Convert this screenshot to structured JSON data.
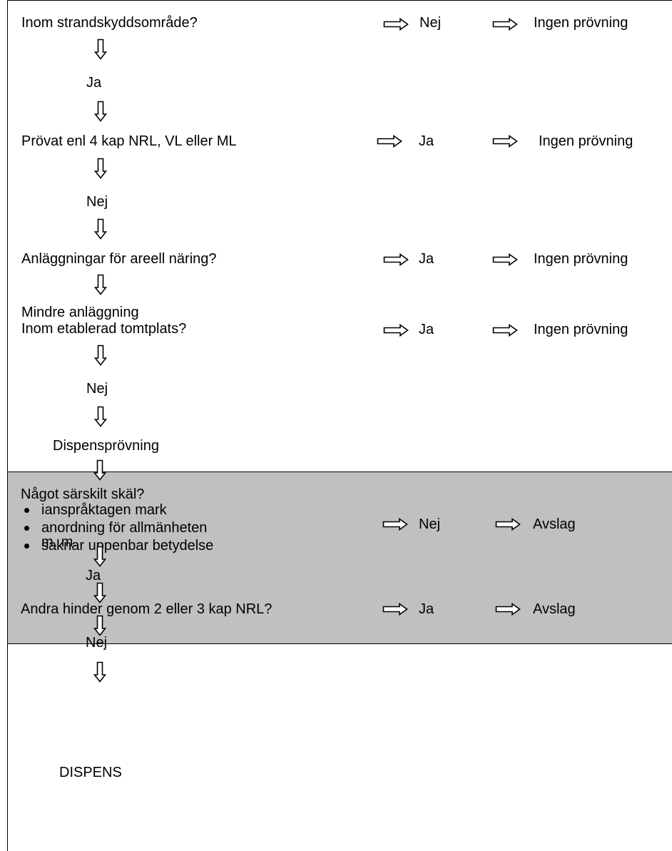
{
  "colors": {
    "shaded": "#c0c0c0",
    "line": "#000000"
  },
  "icons": {
    "down": "down-arrow-icon",
    "right": "right-arrow-icon"
  },
  "steps": {
    "q1": {
      "question": "Inom strandskyddsområde?",
      "branch": "Nej",
      "result": "Ingen prövning",
      "answer_down": "Ja"
    },
    "q2": {
      "question": "Prövat enl 4 kap NRL, VL eller ML",
      "branch": "Ja",
      "result": "Ingen prövning",
      "answer_down": "Nej"
    },
    "q3": {
      "question": "Anläggningar för areell näring?",
      "branch": "Ja",
      "result": "Ingen prövning"
    },
    "q4": {
      "question_line1": "Mindre anläggning",
      "question_line2": "Inom etablerad tomtplats?",
      "branch": "Ja",
      "result": "Ingen prövning",
      "answer_down": "Nej"
    },
    "dispensprovning": "Dispensprövning",
    "q5": {
      "question": "Något särskilt skäl?",
      "bullets": [
        "ianspråktagen mark",
        "anordning för allmänheten",
        "saknar uppenbar betydelse"
      ],
      "tail": "m. m.",
      "branch": "Nej",
      "result": "Avslag",
      "answer_down": "Ja"
    },
    "q6": {
      "question": "Andra hinder genom 2 eller 3 kap NRL?",
      "branch": "Ja",
      "result": "Avslag",
      "answer_down": "Nej"
    },
    "final": "DISPENS"
  }
}
